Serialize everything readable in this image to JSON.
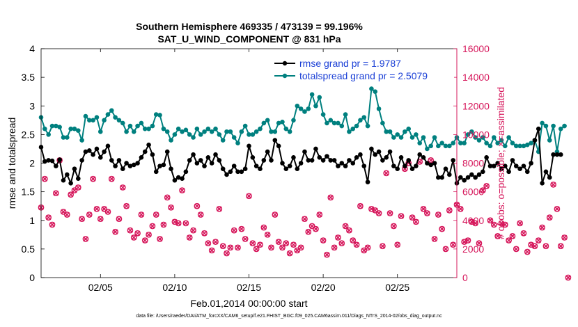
{
  "chart_data": {
    "type": "line",
    "title": "Southern Hemisphere 469335 / 473139 = 99.196%",
    "subtitle": "SAT_U_WIND_COMPONENT @ 831 hPa",
    "xlabel": "Feb.01,2014 00:00:00 start",
    "ylabel": "rmse and totalspread",
    "ylabel_right": "# of obs: o=possible; ×=assimilated",
    "xlim": [
      1,
      29
    ],
    "ylim": [
      0,
      4
    ],
    "ylim_right": [
      0,
      16000
    ],
    "x_ticks": [
      5,
      10,
      15,
      20,
      25
    ],
    "x_tick_labels": [
      "02/05",
      "02/10",
      "02/15",
      "02/20",
      "02/25"
    ],
    "y_ticks": [
      0,
      0.5,
      1,
      1.5,
      2,
      2.5,
      3,
      3.5,
      4
    ],
    "y_tick_labels": [
      "0",
      "0.5",
      "1",
      "1.5",
      "2",
      "2.5",
      "3",
      "3.5",
      "4"
    ],
    "y_right_ticks": [
      0,
      2000,
      4000,
      6000,
      8000,
      10000,
      12000,
      14000,
      16000
    ],
    "y_right_tick_labels": [
      "0",
      "2000",
      "4000",
      "6000",
      "8000",
      "10000",
      "12000",
      "14000",
      "16000"
    ],
    "grid": false,
    "legend_position": "top-right",
    "x_step_days": 0.25,
    "colors": {
      "rmse": "#000000",
      "spread": "#00807f",
      "obs": "#d6175b",
      "legend_text": "#1a3fd6",
      "right_axis": "#d6175b"
    },
    "series": [
      {
        "name": "rmse grand pr = 1.9787",
        "axis": "left",
        "values": [
          2.28,
          2.03,
          2.05,
          2.04,
          1.95,
          2.06,
          1.7,
          1.8,
          1.65,
          1.9,
          1.73,
          2.05,
          2.2,
          2.22,
          2.15,
          2.25,
          2.1,
          2.2,
          2.3,
          2.05,
          1.95,
          2.05,
          1.9,
          2.0,
          1.95,
          1.97,
          2.0,
          2.1,
          2.2,
          2.32,
          2.15,
          1.85,
          1.95,
          1.97,
          2.2,
          1.9,
          1.7,
          1.75,
          1.73,
          1.85,
          2.05,
          2.15,
          2.0,
          2.05,
          1.95,
          2.1,
          2.0,
          2.15,
          2.05,
          1.9,
          1.8,
          1.85,
          1.95,
          1.85,
          1.85,
          1.9,
          2.3,
          2.1,
          1.95,
          1.9,
          2.05,
          2.2,
          2.05,
          2.4,
          2.3,
          2.0,
          1.9,
          1.95,
          2.1,
          1.9,
          2.0,
          2.2,
          2.05,
          2.05,
          2.25,
          2.1,
          2.05,
          2.12,
          2.05,
          2.05,
          1.95,
          2.0,
          1.95,
          2.05,
          2.0,
          2.1,
          2.15,
          1.95,
          1.67,
          2.25,
          2.15,
          2.2,
          2.05,
          2.1,
          2.2,
          1.95,
          1.9,
          2.1,
          1.95,
          2.05,
          1.9,
          1.95,
          2.15,
          2.1,
          2.0,
          1.97,
          2.0,
          1.75,
          1.75,
          1.9,
          1.8,
          2.05,
          1.65,
          1.75,
          1.7,
          1.75,
          1.8,
          1.75,
          1.8,
          1.85,
          2.1,
          1.95,
          1.95,
          2.0,
          1.9,
          1.95,
          1.85,
          2.05,
          1.95,
          1.9,
          1.95,
          1.85,
          2.0,
          2.4,
          2.6,
          1.65,
          1.85,
          1.75,
          2.15,
          2.15,
          2.15
        ]
      },
      {
        "name": "totalspread grand pr = 2.5079",
        "axis": "left",
        "values": [
          2.8,
          2.6,
          2.5,
          2.65,
          2.65,
          2.63,
          2.45,
          2.45,
          2.6,
          2.6,
          2.57,
          2.4,
          2.82,
          2.75,
          2.75,
          2.8,
          2.55,
          2.75,
          2.85,
          2.92,
          2.8,
          2.75,
          2.7,
          2.55,
          2.65,
          2.55,
          2.65,
          2.7,
          2.6,
          2.6,
          2.65,
          2.85,
          2.84,
          2.6,
          2.55,
          2.4,
          2.5,
          2.6,
          2.55,
          2.58,
          2.5,
          2.45,
          2.6,
          2.5,
          2.55,
          2.6,
          2.55,
          2.6,
          2.5,
          2.4,
          2.55,
          2.55,
          2.45,
          2.35,
          2.55,
          2.65,
          2.5,
          2.5,
          2.55,
          2.6,
          2.7,
          2.75,
          2.55,
          2.55,
          2.7,
          2.72,
          2.6,
          2.55,
          2.75,
          3.0,
          2.95,
          2.9,
          2.95,
          3.2,
          3.0,
          3.15,
          2.85,
          2.7,
          2.75,
          2.7,
          2.7,
          2.65,
          2.85,
          2.55,
          2.6,
          2.65,
          2.75,
          2.8,
          2.65,
          3.3,
          3.25,
          2.95,
          2.7,
          2.55,
          2.55,
          2.45,
          2.5,
          2.45,
          2.55,
          2.6,
          2.45,
          2.5,
          2.35,
          2.45,
          2.25,
          2.3,
          2.45,
          2.3,
          2.35,
          2.3,
          2.3,
          2.35,
          2.45,
          2.35,
          2.35,
          2.5,
          2.55,
          2.45,
          2.4,
          2.45,
          2.35,
          2.3,
          2.45,
          2.35,
          2.4,
          2.3,
          2.45,
          2.35,
          2.3,
          2.3,
          2.3,
          2.32,
          2.35,
          2.4,
          2.2,
          2.7,
          2.65,
          2.4,
          2.65,
          2.2,
          2.6,
          2.65
        ]
      },
      {
        "name": "obs possible",
        "axis": "right",
        "markers_only": true,
        "values": [
          4900,
          6900,
          4200,
          3700,
          5900,
          8200,
          4600,
          4400,
          5800,
          6100,
          6300,
          4100,
          2700,
          4400,
          6900,
          4800,
          4100,
          4800,
          4600,
          6900,
          3200,
          4100,
          6300,
          5000,
          3300,
          2800,
          3100,
          4400,
          2600,
          3000,
          3600,
          4400,
          2700,
          3700,
          5600,
          4900,
          3900,
          3800,
          6100,
          3800,
          2800,
          3300,
          5000,
          4400,
          3100,
          2400,
          1900,
          2500,
          4800,
          2200,
          1700,
          2100,
          3300,
          2100,
          3400,
          2700,
          5700,
          2400,
          2000,
          2300,
          3500,
          3000,
          2100,
          4400,
          2500,
          2100,
          2400,
          1700,
          2300,
          1900,
          2100,
          4100,
          3200,
          3600,
          3400,
          4400,
          2600,
          1600,
          5600,
          2100,
          2800,
          2400,
          3600,
          3300,
          2600,
          2300,
          5000,
          1900,
          2100,
          4800,
          4700,
          4500,
          2200,
          7300,
          4500,
          3600,
          2300,
          4300,
          7600,
          8000,
          4200,
          3900,
          8100,
          4800,
          4500,
          8200,
          2700,
          4400,
          3400,
          2000,
          4700,
          2300,
          5100,
          4800,
          2500,
          2600,
          3900,
          3800,
          2400,
          6100,
          6400,
          4000,
          3700,
          2900,
          3800,
          3700,
          2600,
          2900,
          2000,
          3800,
          3100,
          1800,
          2300,
          2200,
          2600,
          3500,
          2200,
          4200,
          6500,
          4800,
          2200,
          2800,
          0
        ]
      },
      {
        "name": "obs assimilated",
        "axis": "right",
        "markers_only": true,
        "values": [
          4900,
          6900,
          4200,
          3700,
          5900,
          8200,
          4600,
          4400,
          5800,
          6100,
          6300,
          4100,
          2700,
          4400,
          6900,
          4800,
          4100,
          4800,
          4600,
          6900,
          3200,
          4100,
          6300,
          5000,
          3300,
          2800,
          3100,
          4400,
          2600,
          3000,
          3600,
          4400,
          2700,
          3700,
          5600,
          4900,
          3900,
          3800,
          6100,
          3800,
          2800,
          3300,
          5000,
          4400,
          3100,
          2400,
          1900,
          2500,
          4800,
          2200,
          1700,
          2100,
          3300,
          2100,
          3400,
          2700,
          5700,
          2400,
          2000,
          2300,
          3500,
          3000,
          2100,
          4400,
          2500,
          2100,
          2400,
          1700,
          2300,
          1900,
          2100,
          4100,
          3200,
          3600,
          3400,
          4400,
          2600,
          1600,
          5600,
          2100,
          2800,
          2400,
          3600,
          3300,
          2600,
          2300,
          5000,
          1900,
          2100,
          4800,
          4700,
          4500,
          2200,
          7300,
          4500,
          3600,
          2300,
          4300,
          7600,
          8000,
          4200,
          3900,
          8100,
          4800,
          4500,
          8200,
          2700,
          4400,
          3400,
          2000,
          4700,
          2300,
          5100,
          4800,
          2500,
          2600,
          3900,
          3800,
          2400,
          6100,
          6400,
          4000,
          3700,
          2900,
          3800,
          3700,
          2600,
          2900,
          2000,
          3800,
          3100,
          1800,
          2300,
          2200,
          2600,
          3500,
          2200,
          4200,
          6500,
          4800,
          2200,
          2800,
          0
        ]
      }
    ]
  },
  "footer": "data file: /Users/raeder/DAI/ATM_forcXX/CAM6_setup/f.e21.FHIST_BGC.f09_025.CAM6assim.011/Diags_NTrS_2014-02/obs_diag_output.nc"
}
